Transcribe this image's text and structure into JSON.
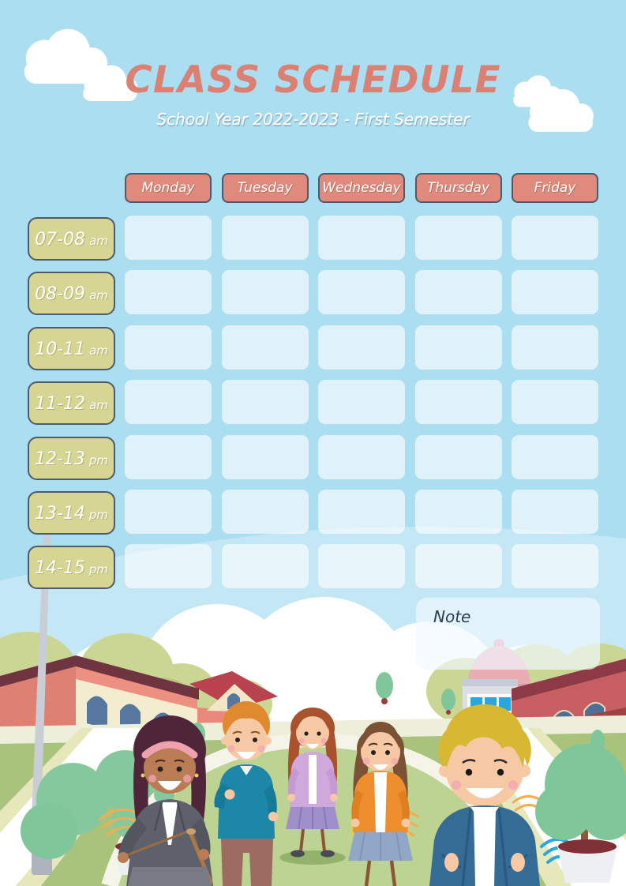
{
  "header": {
    "title": "CLASS SCHEDULE",
    "subtitle": "School Year 2022-2023 - First Semester"
  },
  "schedule": {
    "days": [
      "Monday",
      "Tuesday",
      "Wednesday",
      "Thursday",
      "Friday"
    ],
    "time_slots": [
      {
        "range": "07-08",
        "period": "am"
      },
      {
        "range": "08-09",
        "period": "am"
      },
      {
        "range": "10-11",
        "period": "am"
      },
      {
        "range": "11-12",
        "period": "am"
      },
      {
        "range": "12-13",
        "period": "pm"
      },
      {
        "range": "13-14",
        "period": "pm"
      },
      {
        "range": "14-15",
        "period": "pm"
      }
    ],
    "entries": []
  },
  "note": {
    "label": "Note",
    "content": ""
  },
  "colors": {
    "sky": "#ABDEF0",
    "title": "#DB8174",
    "day_header": "#E08A7D",
    "time_slot": "#D6D593",
    "cell": "rgba(255,255,255,0.62)",
    "outline": "#4C5A6B",
    "note_text": "#2E3A52"
  }
}
